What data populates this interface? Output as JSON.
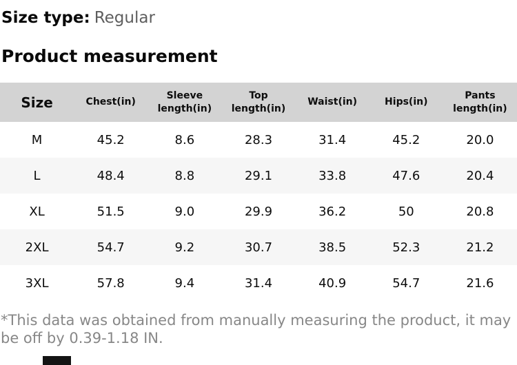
{
  "header": {
    "size_type_label": "Size type:",
    "size_type_value": "Regular",
    "section_title": "Product measurement"
  },
  "table": {
    "columns": [
      "Size",
      "Chest(in)",
      "Sleeve length(in)",
      "Top length(in)",
      "Waist(in)",
      "Hips(in)",
      "Pants length(in)"
    ],
    "rows": [
      [
        "M",
        "45.2",
        "8.6",
        "28.3",
        "31.4",
        "45.2",
        "20.0"
      ],
      [
        "L",
        "48.4",
        "8.8",
        "29.1",
        "33.8",
        "47.6",
        "20.4"
      ],
      [
        "XL",
        "51.5",
        "9.0",
        "29.9",
        "36.2",
        "50",
        "20.8"
      ],
      [
        "2XL",
        "54.7",
        "9.2",
        "30.7",
        "38.5",
        "52.3",
        "21.2"
      ],
      [
        "3XL",
        "57.8",
        "9.4",
        "31.4",
        "40.9",
        "54.7",
        "21.6"
      ]
    ]
  },
  "footer": {
    "disclaimer": "*This data was obtained from manually measuring the product, it may be off by 0.39-1.18 IN."
  },
  "colors": {
    "table_header_bg": "#d3d3d3",
    "row_alt_bg": "#f6f6f6",
    "muted_text_gray": "#5e5e5e",
    "disclaimer_gray": "#878787",
    "bottom_bar": "#141414"
  }
}
